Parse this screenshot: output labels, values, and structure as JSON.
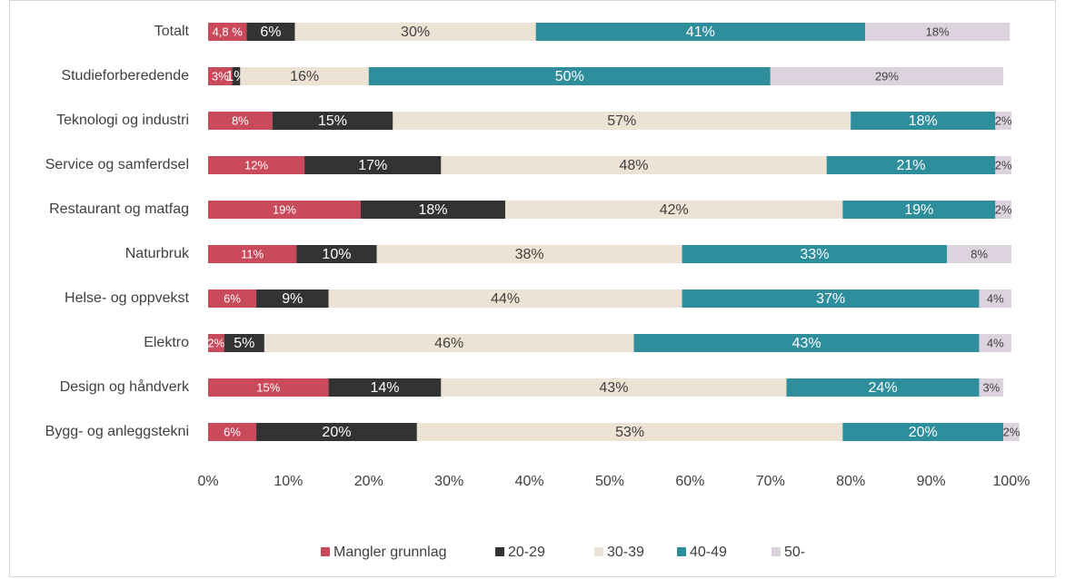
{
  "chart_data": {
    "type": "stacked_bar_horizontal",
    "categories": [
      "Totalt",
      "Studieforberedende",
      "Teknologi og industri",
      "Service og samferdsel",
      "Restaurant og matfag",
      "Naturbruk",
      "Helse- og oppvekst",
      "Elektro",
      "Design og håndverk",
      "Bygg- og anleggstekni"
    ],
    "series": [
      {
        "name": "Mangler grunnlag",
        "color": "#c94a5a",
        "values": [
          4.8,
          3,
          8,
          12,
          19,
          11,
          6,
          2,
          15,
          6
        ],
        "value_labels": [
          "4,8 %",
          "3%",
          "8%",
          "12%",
          "19%",
          "11%",
          "6%",
          "2%",
          "15%",
          "6%"
        ]
      },
      {
        "name": "20-29",
        "color": "#333333",
        "values": [
          6,
          1,
          15,
          17,
          18,
          10,
          9,
          5,
          14,
          20
        ],
        "value_labels": [
          "6%",
          "1%",
          "15%",
          "17%",
          "18%",
          "10%",
          "9%",
          "5%",
          "14%",
          "20%"
        ]
      },
      {
        "name": "30-39",
        "color": "#ede3d4",
        "values": [
          30,
          16,
          57,
          48,
          42,
          38,
          44,
          46,
          43,
          53
        ],
        "value_labels": [
          "30%",
          "16%",
          "57%",
          "48%",
          "42%",
          "38%",
          "44%",
          "46%",
          "43%",
          "53%"
        ]
      },
      {
        "name": "40-49",
        "color": "#2e8e9c",
        "values": [
          41,
          50,
          18,
          21,
          19,
          33,
          37,
          43,
          24,
          20
        ],
        "value_labels": [
          "41%",
          "50%",
          "18%",
          "21%",
          "19%",
          "33%",
          "37%",
          "43%",
          "24%",
          "20%"
        ]
      },
      {
        "name": "50-",
        "color": "#dcd3df",
        "values": [
          18,
          29,
          2,
          2,
          2,
          8,
          4,
          4,
          3,
          2
        ],
        "value_labels": [
          "18%",
          "29%",
          "2%",
          "2%",
          "2%",
          "8%",
          "4%",
          "4%",
          "3%",
          "2%"
        ]
      }
    ],
    "xlim": [
      0,
      100
    ],
    "xticks": [
      {
        "value": 0,
        "label": "0%"
      },
      {
        "value": 10,
        "label": "10%"
      },
      {
        "value": 20,
        "label": "20%"
      },
      {
        "value": 30,
        "label": "30%"
      },
      {
        "value": 40,
        "label": "40%"
      },
      {
        "value": 50,
        "label": "50%"
      },
      {
        "value": 60,
        "label": "60%"
      },
      {
        "value": 70,
        "label": "70%"
      },
      {
        "value": 80,
        "label": "80%"
      },
      {
        "value": 90,
        "label": "90%"
      },
      {
        "value": 100,
        "label": "100%"
      }
    ],
    "grid": false,
    "legend": "bottom"
  }
}
